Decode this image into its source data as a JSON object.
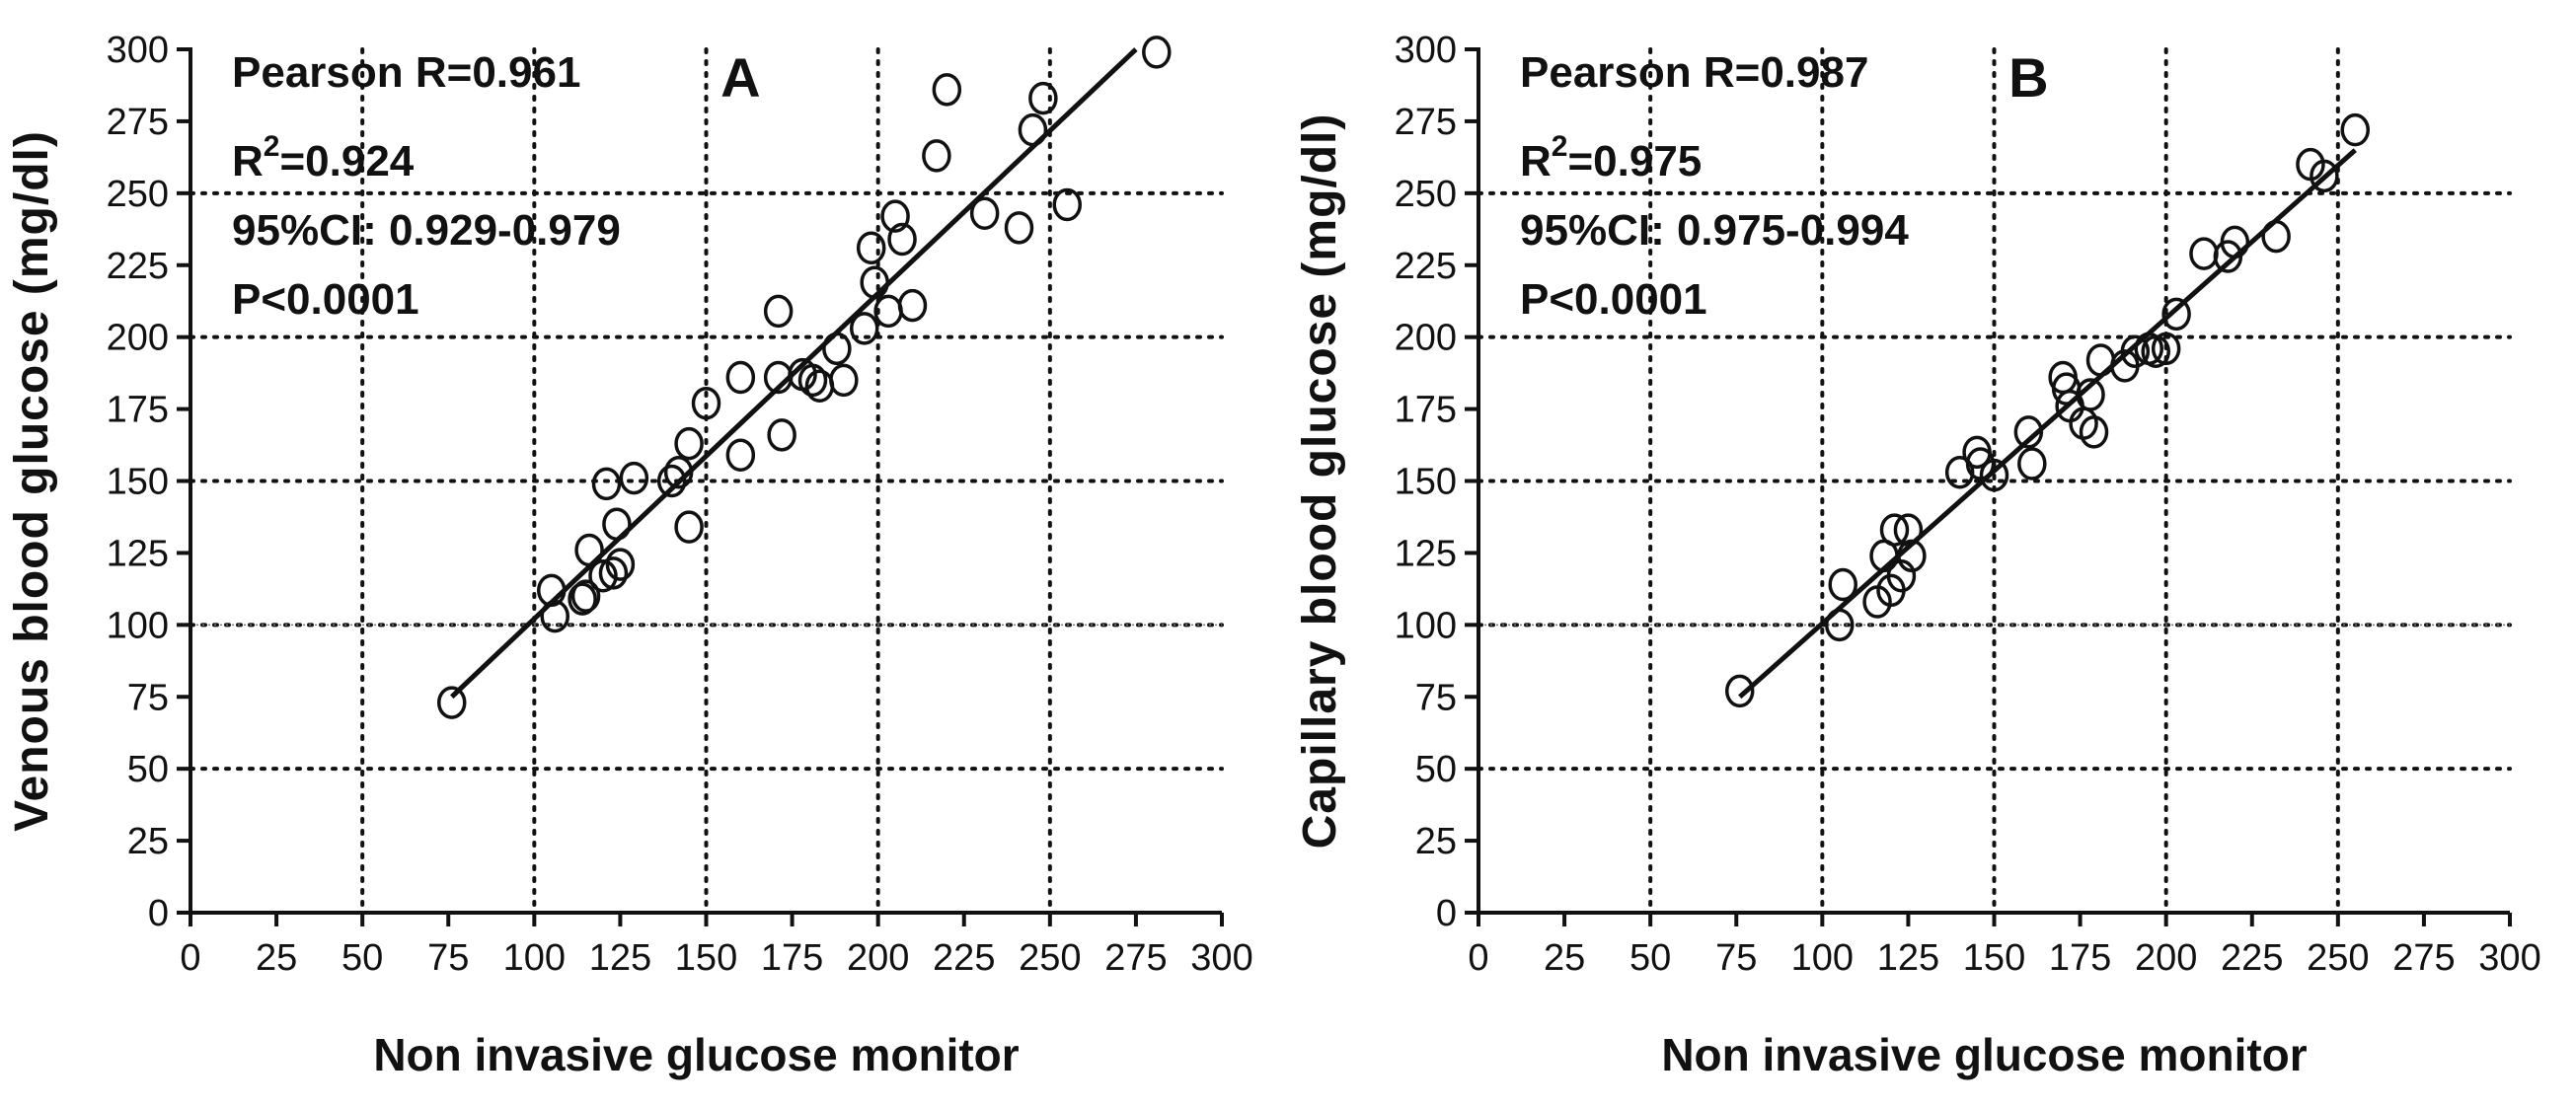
{
  "chart_data": [
    {
      "type": "scatter",
      "panel_label": "A",
      "xlabel": "Non invasive glucose monitor",
      "ylabel": "Venous blood glucose (mg/dl)",
      "xlim": [
        0,
        300
      ],
      "ylim": [
        0,
        300
      ],
      "x_ticks": [
        "0",
        "25",
        "50",
        "75",
        "100",
        "125",
        "150",
        "175",
        "200",
        "225",
        "250",
        "275",
        "300"
      ],
      "y_ticks": [
        "0",
        "25",
        "50",
        "75",
        "100",
        "125",
        "150",
        "175",
        "200",
        "225",
        "250",
        "275",
        "300"
      ],
      "grid_major": [
        50,
        100,
        150,
        200,
        250
      ],
      "stats": {
        "pearson": "Pearson R=0.961",
        "r2_prefix": "R",
        "r2_sup": "2",
        "r2_value": "=0.924",
        "ci": "95%CI: 0.929-0.979",
        "p": "P<0.0001"
      },
      "regression": {
        "x": [
          76,
          275
        ],
        "y": [
          75,
          300
        ]
      },
      "points": [
        {
          "x": 76,
          "y": 73
        },
        {
          "x": 105,
          "y": 112
        },
        {
          "x": 106,
          "y": 103
        },
        {
          "x": 114,
          "y": 109
        },
        {
          "x": 115,
          "y": 110
        },
        {
          "x": 116,
          "y": 126
        },
        {
          "x": 120,
          "y": 117
        },
        {
          "x": 121,
          "y": 149
        },
        {
          "x": 123,
          "y": 118
        },
        {
          "x": 124,
          "y": 135
        },
        {
          "x": 125,
          "y": 121
        },
        {
          "x": 129,
          "y": 151
        },
        {
          "x": 140,
          "y": 150
        },
        {
          "x": 142,
          "y": 153
        },
        {
          "x": 145,
          "y": 163
        },
        {
          "x": 145,
          "y": 134
        },
        {
          "x": 150,
          "y": 177
        },
        {
          "x": 160,
          "y": 186
        },
        {
          "x": 160,
          "y": 159
        },
        {
          "x": 171,
          "y": 186
        },
        {
          "x": 171,
          "y": 209
        },
        {
          "x": 172,
          "y": 166
        },
        {
          "x": 178,
          "y": 187
        },
        {
          "x": 181,
          "y": 185
        },
        {
          "x": 183,
          "y": 183
        },
        {
          "x": 188,
          "y": 196
        },
        {
          "x": 190,
          "y": 185
        },
        {
          "x": 196,
          "y": 203
        },
        {
          "x": 198,
          "y": 231
        },
        {
          "x": 199,
          "y": 219
        },
        {
          "x": 203,
          "y": 209
        },
        {
          "x": 205,
          "y": 242
        },
        {
          "x": 207,
          "y": 234
        },
        {
          "x": 210,
          "y": 211
        },
        {
          "x": 217,
          "y": 263
        },
        {
          "x": 220,
          "y": 286
        },
        {
          "x": 231,
          "y": 243
        },
        {
          "x": 241,
          "y": 238
        },
        {
          "x": 245,
          "y": 272
        },
        {
          "x": 248,
          "y": 283
        },
        {
          "x": 255,
          "y": 246
        },
        {
          "x": 281,
          "y": 299
        }
      ]
    },
    {
      "type": "scatter",
      "panel_label": "B",
      "xlabel": "Non invasive glucose monitor",
      "ylabel": "Capillary blood glucose (mg/dl)",
      "xlim": [
        0,
        300
      ],
      "ylim": [
        0,
        300
      ],
      "x_ticks": [
        "0",
        "25",
        "50",
        "75",
        "100",
        "125",
        "150",
        "175",
        "200",
        "225",
        "250",
        "275",
        "300"
      ],
      "y_ticks": [
        "0",
        "25",
        "50",
        "75",
        "100",
        "125",
        "150",
        "175",
        "200",
        "225",
        "250",
        "275",
        "300"
      ],
      "grid_major": [
        50,
        100,
        150,
        200,
        250
      ],
      "stats": {
        "pearson": "Pearson R=0.987",
        "r2_prefix": "R",
        "r2_sup": "2",
        "r2_value": "=0.975",
        "ci": "95%CI: 0.975-0.994",
        "p": "P<0.0001"
      },
      "regression": {
        "x": [
          76,
          255
        ],
        "y": [
          75,
          265
        ]
      },
      "points": [
        {
          "x": 76,
          "y": 77
        },
        {
          "x": 105,
          "y": 100
        },
        {
          "x": 106,
          "y": 114
        },
        {
          "x": 116,
          "y": 108
        },
        {
          "x": 118,
          "y": 124
        },
        {
          "x": 120,
          "y": 112
        },
        {
          "x": 121,
          "y": 133
        },
        {
          "x": 123,
          "y": 117
        },
        {
          "x": 125,
          "y": 133
        },
        {
          "x": 126,
          "y": 124
        },
        {
          "x": 140,
          "y": 153
        },
        {
          "x": 145,
          "y": 160
        },
        {
          "x": 146,
          "y": 156
        },
        {
          "x": 150,
          "y": 152
        },
        {
          "x": 160,
          "y": 167
        },
        {
          "x": 161,
          "y": 156
        },
        {
          "x": 170,
          "y": 186
        },
        {
          "x": 171,
          "y": 182
        },
        {
          "x": 172,
          "y": 176
        },
        {
          "x": 176,
          "y": 170
        },
        {
          "x": 178,
          "y": 180
        },
        {
          "x": 179,
          "y": 167
        },
        {
          "x": 181,
          "y": 192
        },
        {
          "x": 188,
          "y": 190
        },
        {
          "x": 191,
          "y": 195
        },
        {
          "x": 195,
          "y": 196
        },
        {
          "x": 197,
          "y": 195
        },
        {
          "x": 200,
          "y": 196
        },
        {
          "x": 203,
          "y": 208
        },
        {
          "x": 211,
          "y": 229
        },
        {
          "x": 218,
          "y": 228
        },
        {
          "x": 220,
          "y": 233
        },
        {
          "x": 232,
          "y": 235
        },
        {
          "x": 242,
          "y": 260
        },
        {
          "x": 246,
          "y": 256
        },
        {
          "x": 255,
          "y": 272
        }
      ]
    }
  ]
}
